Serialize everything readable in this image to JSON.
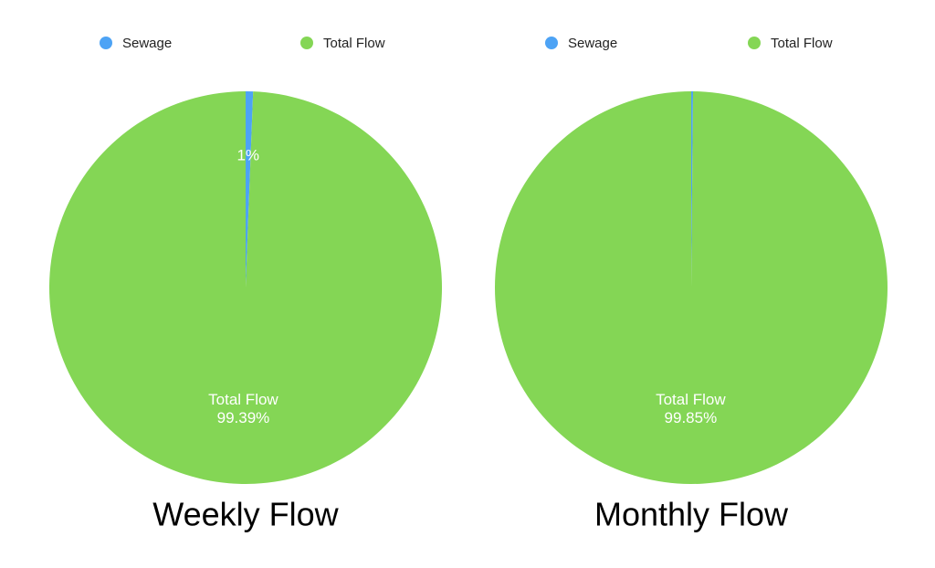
{
  "chart_data": [
    {
      "type": "pie",
      "title": "Weekly Flow",
      "categories": [
        "Sewage",
        "Total Flow"
      ],
      "values": [
        0.61,
        99.39
      ],
      "value_labels": [
        "1%",
        "99.39%"
      ],
      "colors": [
        "#4da3f5",
        "#84d655"
      ]
    },
    {
      "type": "pie",
      "title": "Monthly Flow",
      "categories": [
        "Sewage",
        "Total Flow"
      ],
      "values": [
        0.15,
        99.85
      ],
      "value_labels": [
        null,
        "99.85%"
      ],
      "colors": [
        "#4da3f5",
        "#84d655"
      ]
    }
  ]
}
